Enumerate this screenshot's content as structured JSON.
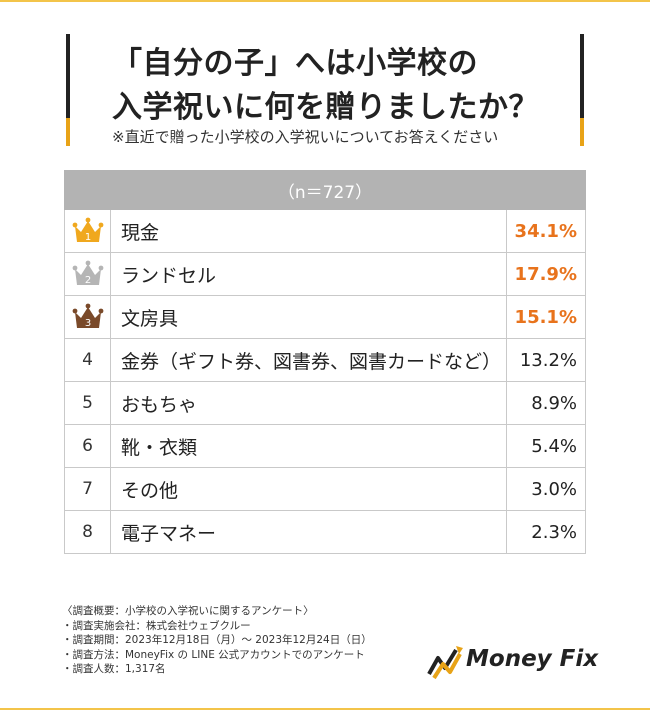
{
  "title": {
    "line1": "「自分の子」へは小学校の",
    "line2": "入学祝いに何を贈りましたか？",
    "subtitle": "※直近で贈った小学校の入学祝いについてお答えください"
  },
  "chart_data": {
    "type": "table",
    "header": "（n＝727）",
    "rows": [
      {
        "rank": "1",
        "label": "現金",
        "value": "34.1%",
        "crown": "gold"
      },
      {
        "rank": "2",
        "label": "ランドセル",
        "value": "17.9%",
        "crown": "silver"
      },
      {
        "rank": "3",
        "label": "文房具",
        "value": "15.1%",
        "crown": "bronze"
      },
      {
        "rank": "4",
        "label": "金券（ギフト券、図書券、図書カードなど）",
        "value": "13.2%"
      },
      {
        "rank": "5",
        "label": "おもちゃ",
        "value": "8.9%"
      },
      {
        "rank": "6",
        "label": "靴・衣類",
        "value": "5.4%"
      },
      {
        "rank": "7",
        "label": "その他",
        "value": "3.0%"
      },
      {
        "rank": "8",
        "label": "電子マネー",
        "value": "2.3%"
      }
    ]
  },
  "colors": {
    "accent": "#e8a317",
    "top_value": "#e8731c",
    "crown_gold": "#f0a81e",
    "crown_silver": "#b5b5b5",
    "crown_bronze": "#7a4a2a",
    "header_bg": "#b3b3b3"
  },
  "notes": [
    "〈調査概要：小学校の入学祝いに関するアンケート〉",
    "・調査実施会社：株式会社ウェブクルー",
    "・調査期間：2023年12月18日（月）～ 2023年12月24日（日）",
    "・調査方法：MoneyFix の LINE 公式アカウントでのアンケート",
    "・調査人数：1,317名"
  ],
  "logo": {
    "text": "Money Fix",
    "icon": "money-fix-logo-icon"
  }
}
